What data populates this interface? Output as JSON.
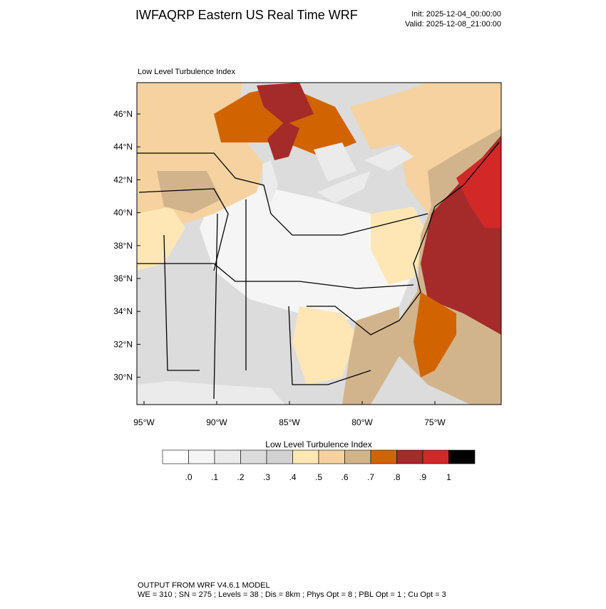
{
  "header": {
    "title": "IWFAQRP Eastern US Real Time WRF",
    "init": "Init: 2025-12-04_00:00:00",
    "valid": "Valid: 2025-12-08_21:00:00"
  },
  "map": {
    "subtitle": "Low Level Turbulence Index",
    "lat_labels": [
      "46°N",
      "44°N",
      "42°N",
      "40°N",
      "38°N",
      "36°N",
      "34°N",
      "32°N",
      "30°N"
    ],
    "lon_labels": [
      "95°W",
      "90°W",
      "85°W",
      "80°W",
      "75°W"
    ]
  },
  "colorbar": {
    "title": "Low Level Turbulence Index",
    "colors": [
      "#ffffff",
      "#f5f5f5",
      "#ebebeb",
      "#dcdcdc",
      "#d2d2d2",
      "#ffe6b4",
      "#f5d2a0",
      "#d2b48c",
      "#d26400",
      "#a52a2a",
      "#d22828",
      "#000000"
    ],
    "labels": [
      ".0",
      ".1",
      ".2",
      ".3",
      ".4",
      ".5",
      ".6",
      ".7",
      ".8",
      ".9",
      "1"
    ]
  },
  "footer": {
    "line1": "OUTPUT FROM WRF V4.6.1 MODEL",
    "line2": "WE = 310 ; SN = 275 ; Levels = 38 ; Dis = 8km ; Phys Opt = 8 ; PBL Opt = 1 ; Cu Opt = 3"
  }
}
